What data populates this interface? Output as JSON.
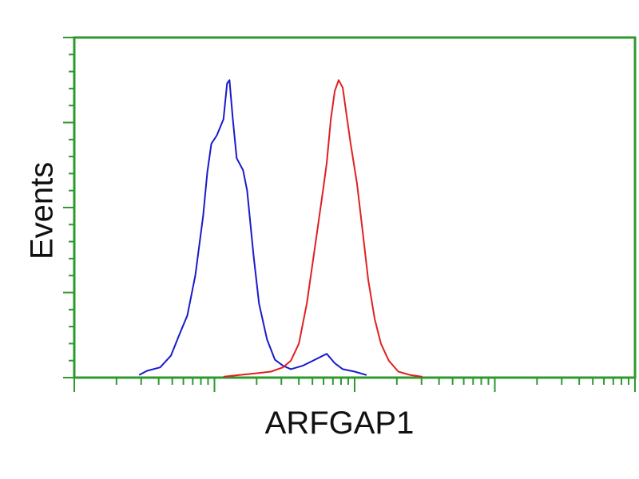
{
  "chart_data": {
    "type": "line",
    "title": "",
    "xlabel": "ARFGAP1",
    "ylabel": "Events",
    "x_scale": "log",
    "xlim": [
      1,
      10000
    ],
    "ylim": [
      0,
      4
    ],
    "grid": false,
    "legend": "none",
    "axis_color": "#2e9a2e",
    "series": [
      {
        "color": "#1a1acc",
        "x": [
          2.9,
          3.3,
          4.1,
          4.9,
          5.6,
          6.4,
          7.3,
          8.3,
          8.9,
          9.5,
          10.4,
          11.6,
          12.3,
          12.8,
          13.5,
          14.4,
          16.0,
          17.1,
          19.0,
          20.8,
          23.7,
          27.0,
          30.8,
          35.1,
          42.7,
          52.0,
          63.2,
          72.1,
          82.2,
          100,
          121.7
        ],
        "y": [
          0.03,
          0.08,
          0.12,
          0.26,
          0.5,
          0.73,
          1.2,
          1.9,
          2.42,
          2.75,
          2.85,
          3.04,
          3.46,
          3.5,
          3.05,
          2.58,
          2.44,
          2.2,
          1.44,
          0.87,
          0.45,
          0.21,
          0.14,
          0.1,
          0.14,
          0.21,
          0.28,
          0.17,
          0.1,
          0.07,
          0.03
        ]
      },
      {
        "color": "#e02020",
        "x": [
          11.6,
          15.0,
          19.5,
          25.3,
          30.8,
          35.1,
          40.0,
          45.6,
          52.0,
          59.3,
          63.2,
          67.6,
          72.1,
          76.9,
          82.2,
          87.7,
          93.7,
          104,
          114,
          125,
          139,
          154,
          175,
          205,
          250,
          304
        ],
        "y": [
          0.01,
          0.03,
          0.05,
          0.07,
          0.12,
          0.2,
          0.4,
          0.87,
          1.53,
          2.19,
          2.52,
          3.04,
          3.37,
          3.5,
          3.41,
          3.08,
          2.75,
          2.28,
          1.72,
          1.15,
          0.69,
          0.4,
          0.2,
          0.07,
          0.03,
          0.01
        ]
      }
    ]
  }
}
